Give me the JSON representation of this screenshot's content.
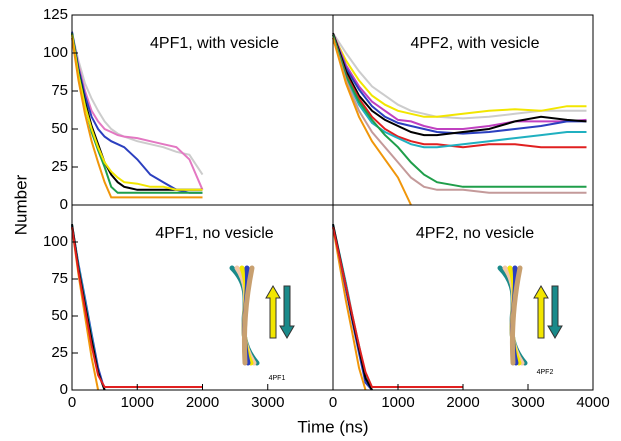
{
  "xlabel": "Time (ns)",
  "ylabel": "Number",
  "chart_data": [
    {
      "type": "line",
      "title": "4PF1, with vesicle",
      "xlim": [
        0,
        4000
      ],
      "ylim": [
        0,
        125
      ],
      "yticks": [
        0,
        25,
        50,
        75,
        100,
        125
      ],
      "x": [
        0,
        100,
        200,
        300,
        400,
        500,
        600,
        700,
        800,
        1000,
        1200,
        1400,
        1600,
        1800,
        2000
      ],
      "series": [
        {
          "color": "#cccccc",
          "values": [
            113,
            95,
            80,
            70,
            62,
            55,
            50,
            47,
            45,
            42,
            40,
            38,
            35,
            33,
            20
          ]
        },
        {
          "color": "#e377c2",
          "values": [
            112,
            92,
            75,
            62,
            55,
            50,
            48,
            46,
            45,
            44,
            42,
            40,
            38,
            30,
            10
          ]
        },
        {
          "color": "#2b3fbf",
          "values": [
            114,
            90,
            72,
            58,
            50,
            45,
            42,
            40,
            38,
            30,
            20,
            15,
            10,
            8,
            8
          ]
        },
        {
          "color": "#000000",
          "values": [
            113,
            88,
            68,
            52,
            40,
            28,
            20,
            15,
            12,
            10,
            10,
            10,
            10,
            10,
            10
          ]
        },
        {
          "color": "#1f9e4a",
          "values": [
            113,
            87,
            66,
            48,
            36,
            25,
            12,
            8,
            8,
            8,
            8,
            8,
            8,
            8,
            8
          ]
        },
        {
          "color": "#f2e600",
          "values": [
            112,
            85,
            65,
            50,
            38,
            28,
            22,
            18,
            15,
            14,
            12,
            12,
            10,
            10,
            10
          ]
        },
        {
          "color": "#f0960a",
          "values": [
            110,
            82,
            60,
            42,
            28,
            15,
            5,
            5,
            5,
            5,
            5,
            5,
            5,
            5,
            5
          ]
        }
      ]
    },
    {
      "type": "line",
      "title": "4PF2, with vesicle",
      "xlim": [
        0,
        4000
      ],
      "ylim": [
        0,
        125
      ],
      "x": [
        0,
        200,
        400,
        600,
        800,
        1000,
        1200,
        1400,
        1600,
        2000,
        2400,
        2800,
        3200,
        3600,
        3900
      ],
      "series": [
        {
          "color": "#cccccc",
          "values": [
            113,
            100,
            88,
            78,
            72,
            66,
            62,
            60,
            58,
            57,
            58,
            60,
            62,
            62,
            62
          ]
        },
        {
          "color": "#f2e600",
          "values": [
            112,
            95,
            82,
            72,
            66,
            62,
            60,
            58,
            58,
            60,
            62,
            63,
            62,
            65,
            65
          ]
        },
        {
          "color": "#c040c0",
          "values": [
            113,
            92,
            78,
            68,
            62,
            56,
            55,
            52,
            50,
            50,
            52,
            55,
            55,
            55,
            56
          ]
        },
        {
          "color": "#2b3fbf",
          "values": [
            112,
            90,
            76,
            65,
            58,
            54,
            52,
            50,
            48,
            47,
            48,
            50,
            52,
            55,
            55
          ]
        },
        {
          "color": "#000000",
          "values": [
            113,
            88,
            72,
            62,
            56,
            52,
            48,
            46,
            46,
            48,
            50,
            55,
            58,
            56,
            55
          ]
        },
        {
          "color": "#e02020",
          "values": [
            112,
            86,
            70,
            58,
            50,
            45,
            42,
            40,
            40,
            38,
            40,
            40,
            38,
            38,
            38
          ]
        },
        {
          "color": "#20b0c0",
          "values": [
            110,
            84,
            66,
            54,
            48,
            44,
            40,
            38,
            38,
            40,
            42,
            44,
            46,
            48,
            48
          ]
        },
        {
          "color": "#1f9e4a",
          "values": [
            112,
            85,
            68,
            56,
            46,
            38,
            28,
            20,
            15,
            12,
            12,
            12,
            12,
            12,
            12
          ]
        },
        {
          "color": "#c49a9a",
          "values": [
            110,
            82,
            62,
            48,
            38,
            28,
            18,
            12,
            10,
            10,
            8,
            8,
            8,
            8,
            8
          ]
        },
        {
          "color": "#f0960a",
          "values": [
            110,
            80,
            58,
            42,
            30,
            18,
            0,
            null,
            null,
            null,
            null,
            null,
            null,
            null,
            null
          ]
        }
      ]
    },
    {
      "type": "line",
      "title": "4PF1, no vesicle",
      "inset_label": "4PF1",
      "xlim": [
        0,
        4000
      ],
      "ylim": [
        0,
        125
      ],
      "xticks": [
        0,
        1000,
        2000,
        3000
      ],
      "yticks": [
        0,
        25,
        50,
        75,
        100
      ],
      "x": [
        0,
        100,
        200,
        300,
        400,
        500,
        1000,
        2000
      ],
      "series": [
        {
          "color": "#f0960a",
          "values": [
            110,
            78,
            50,
            22,
            0,
            null,
            null,
            null
          ]
        },
        {
          "color": "#2b3fbf",
          "values": [
            111,
            85,
            62,
            38,
            15,
            0,
            null,
            null
          ]
        },
        {
          "color": "#20b0c0",
          "values": [
            112,
            84,
            60,
            36,
            12,
            0,
            null,
            null
          ]
        },
        {
          "color": "#000000",
          "values": [
            112,
            82,
            58,
            34,
            12,
            0,
            null,
            null
          ]
        },
        {
          "color": "#e02020",
          "values": [
            110,
            80,
            55,
            30,
            10,
            2,
            2,
            2
          ]
        }
      ]
    },
    {
      "type": "line",
      "title": "4PF2, no vesicle",
      "inset_label": "4PF2",
      "xlim": [
        0,
        4000
      ],
      "ylim": [
        0,
        125
      ],
      "xticks": [
        0,
        1000,
        2000,
        3000,
        4000
      ],
      "x": [
        0,
        100,
        200,
        300,
        400,
        500,
        600,
        700,
        1000,
        2000
      ],
      "series": [
        {
          "color": "#f0960a",
          "values": [
            110,
            85,
            60,
            38,
            15,
            0,
            null,
            null,
            null,
            null
          ]
        },
        {
          "color": "#2b3fbf",
          "values": [
            111,
            90,
            68,
            46,
            25,
            5,
            0,
            null,
            null,
            null
          ]
        },
        {
          "color": "#20b0c0",
          "values": [
            112,
            92,
            72,
            50,
            30,
            10,
            0,
            null,
            null,
            null
          ]
        },
        {
          "color": "#000000",
          "values": [
            112,
            91,
            70,
            48,
            28,
            8,
            0,
            null,
            null,
            null
          ]
        },
        {
          "color": "#e02020",
          "values": [
            110,
            90,
            70,
            50,
            30,
            12,
            2,
            2,
            2,
            2
          ]
        }
      ]
    }
  ]
}
